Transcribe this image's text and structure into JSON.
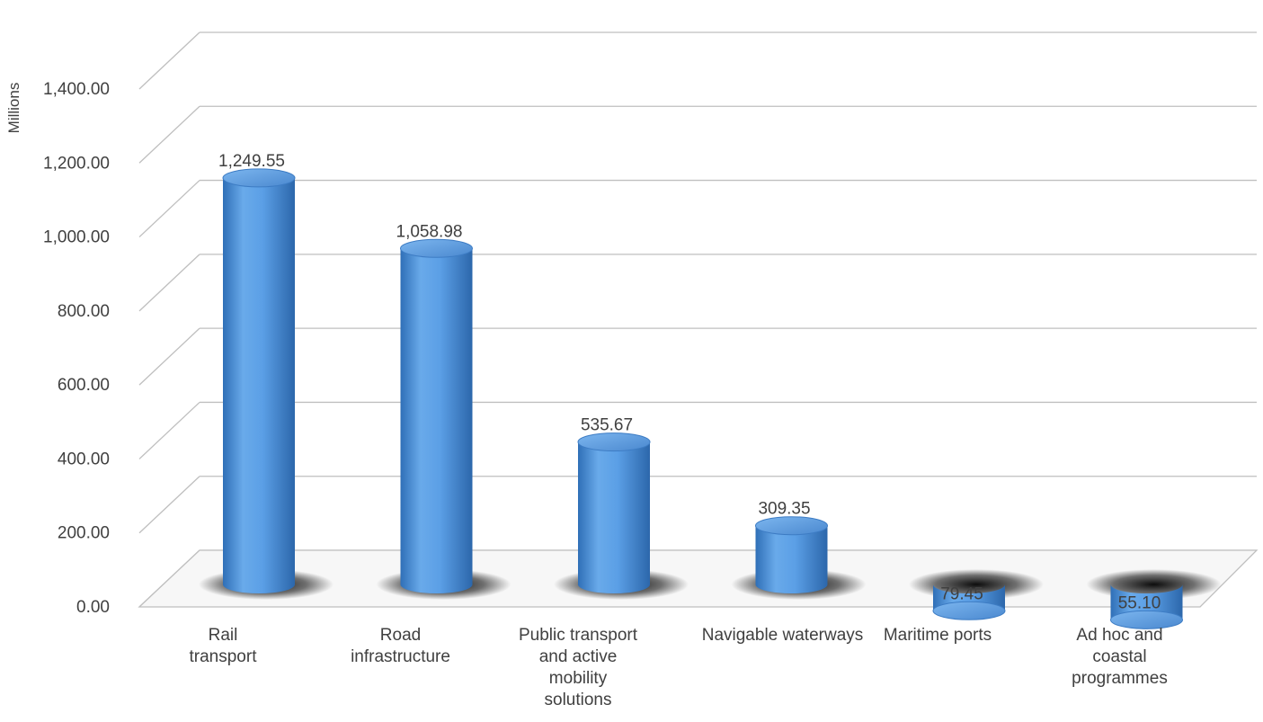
{
  "chart_data": {
    "type": "bar",
    "title": "",
    "xlabel": "",
    "ylabel": "Millions",
    "ylim": [
      0,
      1400
    ],
    "yticks": [
      "0.00",
      "200.00",
      "400.00",
      "600.00",
      "800.00",
      "1,000.00",
      "1,200.00",
      "1,400.00"
    ],
    "grid": true,
    "legend": "none",
    "style": "3d-cylinder",
    "bar_color": "#5b9bd5",
    "categories": [
      [
        "Rail",
        "transport"
      ],
      [
        "Road",
        "infrastructure"
      ],
      [
        "Public transport",
        "and active",
        "mobility",
        "solutions"
      ],
      [
        "Navigable waterways"
      ],
      [
        "Maritime ports"
      ],
      [
        "Ad hoc and",
        "coastal",
        "programmes"
      ]
    ],
    "values": [
      1249.55,
      1058.98,
      535.67,
      309.35,
      79.45,
      55.1
    ],
    "data_labels": [
      "1,249.55",
      "1,058.98",
      "535.67",
      "309.35",
      "79.45",
      "55.10"
    ]
  }
}
